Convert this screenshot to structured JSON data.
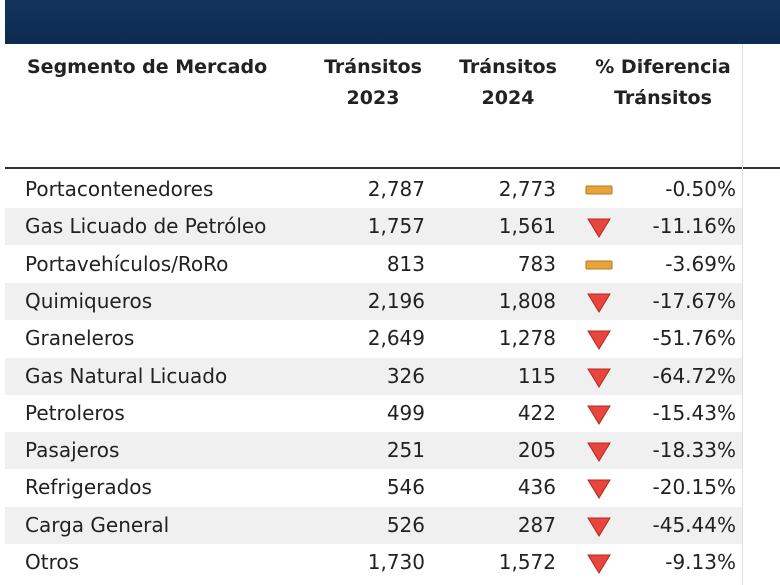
{
  "table": {
    "header": [
      "Segmento de Mercado",
      "Tránsitos 2023",
      "Tránsitos 2024",
      "% Diferencia Tránsitos"
    ],
    "rows": [
      [
        "Portacontenedores",
        "2,787",
        "2,773",
        "-0.50%"
      ],
      [
        "Gas Licuado de Petróleo",
        "1,757",
        "1,561",
        "-11.16%"
      ],
      [
        "Portavehículos/RoRo",
        "813",
        "783",
        "-3.69%"
      ],
      [
        "Quimiqueros",
        "2,196",
        "1,808",
        "-17.67%"
      ],
      [
        "Graneleros",
        "2,649",
        "1,278",
        "-51.76%"
      ],
      [
        "Gas Natural Licuado",
        "326",
        "115",
        "-64.72%"
      ],
      [
        "Petroleros",
        "499",
        "422",
        "-15.43%"
      ],
      [
        "Pasajeros",
        "251",
        "205",
        "-18.33%"
      ],
      [
        "Refrigerados",
        "546",
        "436",
        "-20.15%"
      ],
      [
        "Carga General",
        "526",
        "287",
        "-45.44%"
      ],
      [
        "Otros",
        "1,730",
        "1,572",
        "-9.13%"
      ]
    ]
  }
}
